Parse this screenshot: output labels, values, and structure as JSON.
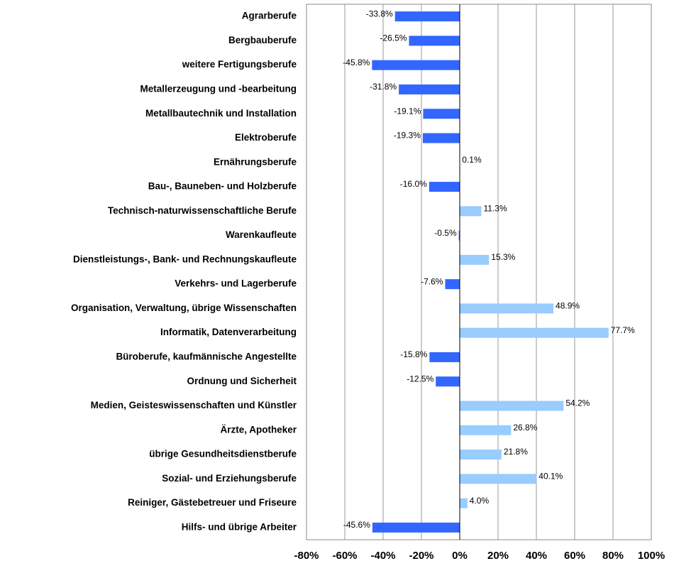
{
  "chart_data": {
    "type": "barh",
    "categories": [
      "Agrarberufe",
      "Bergbauberufe",
      "weitere Fertigungsberufe",
      "Metallerzeugung und -bearbeitung",
      "Metallbautechnik und Installation",
      "Elektroberufe",
      "Ernährungsberufe",
      "Bau-, Bauneben- und Holzberufe",
      "Technisch-naturwissenschaftliche Berufe",
      "Warenkaufleute",
      "Dienstleistungs-, Bank- und Rechnungskaufleute",
      "Verkehrs- und Lagerberufe",
      "Organisation, Verwaltung, übrige Wissenschaften",
      "Informatik, Datenverarbeitung",
      "Büroberufe, kaufmännische Angestellte",
      "Ordnung und Sicherheit",
      "Medien, Geisteswissenschaften und Künstler",
      "Ärzte, Apotheker",
      "übrige Gesundheitsdienstberufe",
      "Sozial- und Erziehungsberufe",
      "Reiniger, Gästebetreuer und Friseure",
      "Hilfs- und übrige Arbeiter"
    ],
    "values": [
      -33.8,
      -26.5,
      -45.8,
      -31.8,
      -19.1,
      -19.3,
      0.1,
      -16.0,
      11.3,
      -0.5,
      15.3,
      -7.6,
      48.9,
      77.7,
      -15.8,
      -12.5,
      54.2,
      26.8,
      21.8,
      40.1,
      4.0,
      -45.6
    ],
    "value_labels": [
      "-33.8%",
      "-26.5%",
      "-45.8%",
      "-31.8%",
      "-19.1%",
      "-19.3%",
      "0.1%",
      "-16.0%",
      "11.3%",
      "-0.5%",
      "15.3%",
      "-7.6%",
      "48.9%",
      "77.7%",
      "-15.8%",
      "-12.5%",
      "54.2%",
      "26.8%",
      "21.8%",
      "40.1%",
      "4.0%",
      "-45.6%"
    ],
    "color": "#99ccff",
    "negative_color": "#3366ff",
    "xlim": [
      -80,
      100
    ],
    "xticks": [
      {
        "value": -80,
        "label": "-80%"
      },
      {
        "value": -60,
        "label": "-60%"
      },
      {
        "value": -40,
        "label": "-40%"
      },
      {
        "value": -20,
        "label": "-20%"
      },
      {
        "value": 0,
        "label": "0%"
      },
      {
        "value": 20,
        "label": "20%"
      },
      {
        "value": 40,
        "label": "40%"
      },
      {
        "value": 60,
        "label": "60%"
      },
      {
        "value": 80,
        "label": "80%"
      },
      {
        "value": 100,
        "label": "100%"
      }
    ],
    "grid": true
  }
}
